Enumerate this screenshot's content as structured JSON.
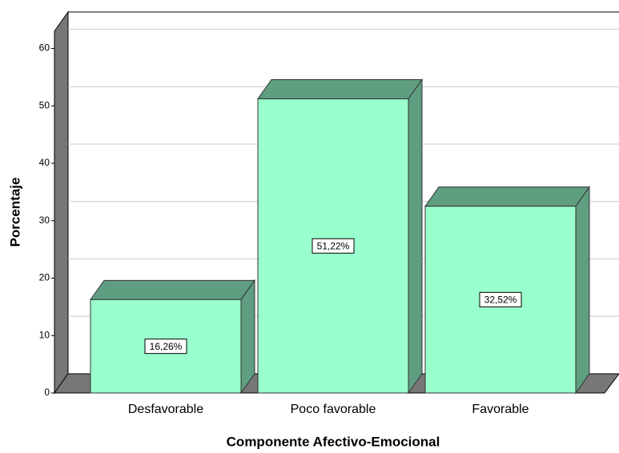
{
  "chart_data": {
    "type": "bar3d",
    "x_label": "Componente Afectivo-Emocional",
    "y_label": "Porcentaje",
    "categories": [
      "Desfavorable",
      "Poco favorable",
      "Favorable"
    ],
    "values": [
      16.26,
      51.22,
      32.52
    ],
    "value_labels": [
      "16,26%",
      "51,22%",
      "32,52%"
    ],
    "color": "#99ffcc",
    "ylim": [
      0,
      63
    ],
    "yticks": [
      0,
      10,
      20,
      30,
      40,
      50,
      60
    ],
    "grid": true
  }
}
